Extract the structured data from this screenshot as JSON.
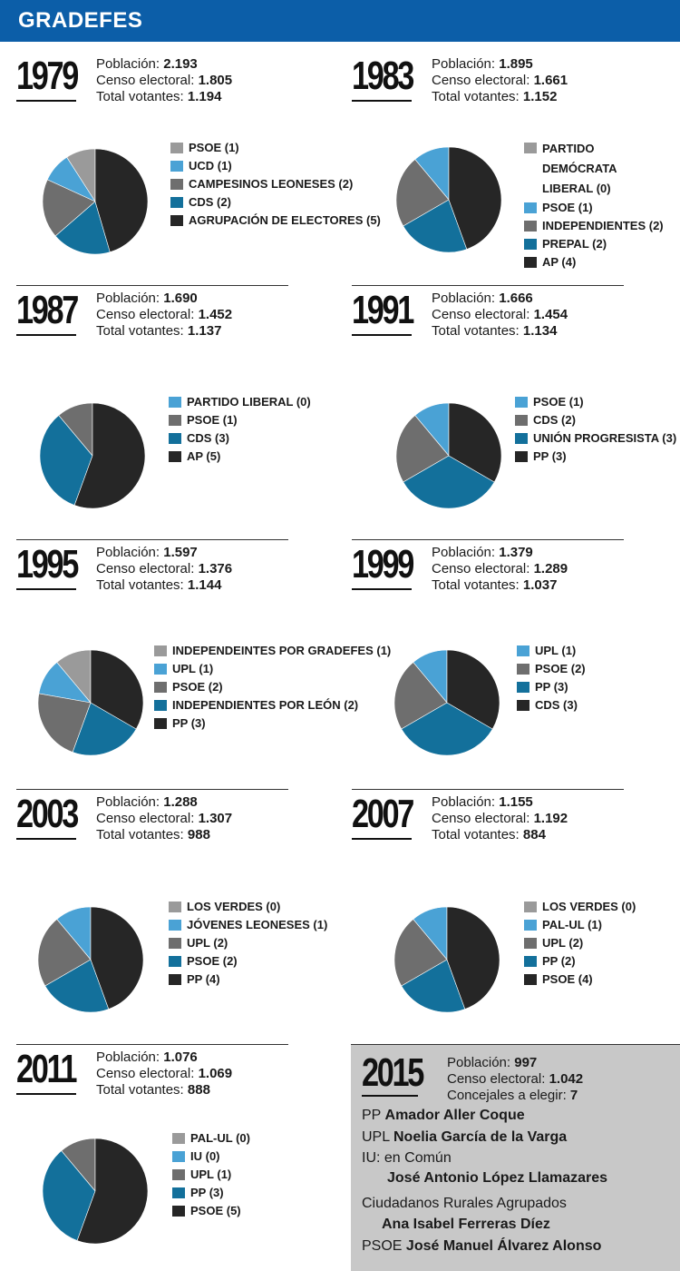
{
  "header": {
    "title": "GRADEFES"
  },
  "labels": {
    "poblacion": "Población:",
    "censo": "Censo electoral:",
    "votantes": "Total votantes:",
    "concejales": "Concejales a elegir:"
  },
  "colors": {
    "darkest": "#262626",
    "blue_dark": "#13709b",
    "grey_mid": "#6e6e6e",
    "blue_light": "#4aa2d5",
    "grey_light": "#9a9a9a"
  },
  "chart_data": [
    {
      "type": "pie",
      "year": "1979",
      "poblacion": "2.193",
      "censo": "1.805",
      "votantes": "1.194",
      "slices": [
        {
          "label": "PSOE (1)",
          "value": 1,
          "color": "#9a9a9a"
        },
        {
          "label": "UCD (1)",
          "value": 1,
          "color": "#4aa2d5"
        },
        {
          "label": "CAMPESINOS LEONESES (2)",
          "value": 2,
          "color": "#6e6e6e"
        },
        {
          "label": "CDS (2)",
          "value": 2,
          "color": "#13709b"
        },
        {
          "label": "AGRUPACIÓN DE ELECTORES (5)",
          "value": 5,
          "color": "#262626"
        }
      ]
    },
    {
      "type": "pie",
      "year": "1983",
      "poblacion": "1.895",
      "censo": "1.661",
      "votantes": "1.152",
      "slices": [
        {
          "label": "PARTIDO DEMÓCRATA LIBERAL (0)",
          "value": 0,
          "color": "#9a9a9a"
        },
        {
          "label": "PSOE (1)",
          "value": 1,
          "color": "#4aa2d5"
        },
        {
          "label": "INDEPENDIENTES (2)",
          "value": 2,
          "color": "#6e6e6e"
        },
        {
          "label": "PREPAL (2)",
          "value": 2,
          "color": "#13709b"
        },
        {
          "label": "AP (4)",
          "value": 4,
          "color": "#262626"
        }
      ]
    },
    {
      "type": "pie",
      "year": "1987",
      "poblacion": "1.690",
      "censo": "1.452",
      "votantes": "1.137",
      "slices": [
        {
          "label": "PARTIDO LIBERAL (0)",
          "value": 0,
          "color": "#4aa2d5"
        },
        {
          "label": "PSOE (1)",
          "value": 1,
          "color": "#6e6e6e"
        },
        {
          "label": "CDS (3)",
          "value": 3,
          "color": "#13709b"
        },
        {
          "label": "AP (5)",
          "value": 5,
          "color": "#262626"
        }
      ]
    },
    {
      "type": "pie",
      "year": "1991",
      "poblacion": "1.666",
      "censo": "1.454",
      "votantes": "1.134",
      "slices": [
        {
          "label": "PSOE (1)",
          "value": 1,
          "color": "#4aa2d5"
        },
        {
          "label": "CDS (2)",
          "value": 2,
          "color": "#6e6e6e"
        },
        {
          "label": "UNIÓN PROGRESISTA (3)",
          "value": 3,
          "color": "#13709b"
        },
        {
          "label": "PP (3)",
          "value": 3,
          "color": "#262626"
        }
      ]
    },
    {
      "type": "pie",
      "year": "1995",
      "poblacion": "1.597",
      "censo": "1.376",
      "votantes": "1.144",
      "slices": [
        {
          "label": "INDEPENDEINTES POR GRADEFES (1)",
          "value": 1,
          "color": "#9a9a9a"
        },
        {
          "label": "UPL (1)",
          "value": 1,
          "color": "#4aa2d5"
        },
        {
          "label": "PSOE (2)",
          "value": 2,
          "color": "#6e6e6e"
        },
        {
          "label": "INDEPENDIENTES POR LEÓN (2)",
          "value": 2,
          "color": "#13709b"
        },
        {
          "label": "PP (3)",
          "value": 3,
          "color": "#262626"
        }
      ]
    },
    {
      "type": "pie",
      "year": "1999",
      "poblacion": "1.379",
      "censo": "1.289",
      "votantes": "1.037",
      "slices": [
        {
          "label": "UPL (1)",
          "value": 1,
          "color": "#4aa2d5"
        },
        {
          "label": "PSOE (2)",
          "value": 2,
          "color": "#6e6e6e"
        },
        {
          "label": "PP (3)",
          "value": 3,
          "color": "#13709b"
        },
        {
          "label": "CDS (3)",
          "value": 3,
          "color": "#262626"
        }
      ]
    },
    {
      "type": "pie",
      "year": "2003",
      "poblacion": "1.288",
      "censo": "1.307",
      "votantes": "988",
      "slices": [
        {
          "label": "LOS VERDES (0)",
          "value": 0,
          "color": "#9a9a9a"
        },
        {
          "label": "JÓVENES LEONESES (1)",
          "value": 1,
          "color": "#4aa2d5"
        },
        {
          "label": "UPL (2)",
          "value": 2,
          "color": "#6e6e6e"
        },
        {
          "label": "PSOE (2)",
          "value": 2,
          "color": "#13709b"
        },
        {
          "label": "PP (4)",
          "value": 4,
          "color": "#262626"
        }
      ]
    },
    {
      "type": "pie",
      "year": "2007",
      "poblacion": "1.155",
      "censo": "1.192",
      "votantes": "884",
      "slices": [
        {
          "label": "LOS VERDES (0)",
          "value": 0,
          "color": "#9a9a9a"
        },
        {
          "label": "PAL-UL (1)",
          "value": 1,
          "color": "#4aa2d5"
        },
        {
          "label": "UPL (2)",
          "value": 2,
          "color": "#6e6e6e"
        },
        {
          "label": "PP (2)",
          "value": 2,
          "color": "#13709b"
        },
        {
          "label": "PSOE (4)",
          "value": 4,
          "color": "#262626"
        }
      ]
    },
    {
      "type": "pie",
      "year": "2011",
      "poblacion": "1.076",
      "censo": "1.069",
      "votantes": "888",
      "slices": [
        {
          "label": "PAL-UL (0)",
          "value": 0,
          "color": "#9a9a9a"
        },
        {
          "label": "IU (0)",
          "value": 0,
          "color": "#4aa2d5"
        },
        {
          "label": "UPL (1)",
          "value": 1,
          "color": "#6e6e6e"
        },
        {
          "label": "PP (3)",
          "value": 3,
          "color": "#13709b"
        },
        {
          "label": "PSOE (5)",
          "value": 5,
          "color": "#262626"
        }
      ]
    }
  ],
  "y2015": {
    "year": "2015",
    "poblacion": "997",
    "censo": "1.042",
    "concejales": "7",
    "candidates": [
      {
        "party": "PP",
        "name": "Amador Aller Coque"
      },
      {
        "party": "UPL",
        "name": "Noelia García de la Varga"
      },
      {
        "party": "IU: en Común",
        "name": "José Antonio López Llamazares"
      },
      {
        "party": "Ciudadanos Rurales Agrupados",
        "name": "Ana Isabel Ferreras Díez"
      },
      {
        "party": "PSOE",
        "name": "José Manuel Álvarez Alonso"
      }
    ]
  }
}
